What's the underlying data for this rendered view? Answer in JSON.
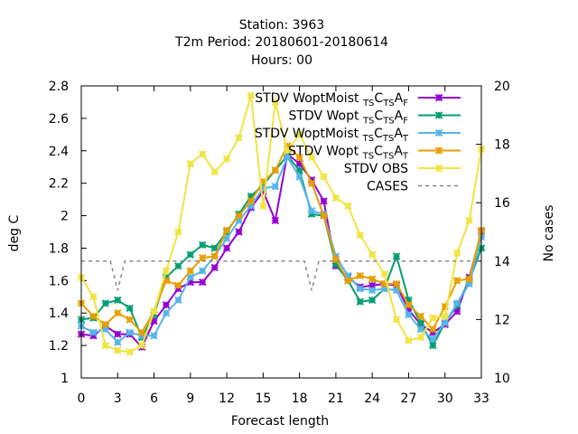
{
  "chart_data": {
    "type": "line",
    "title_lines": [
      "Station:     3963",
      "T2m   Period: 20180601-20180614",
      "Hours:  00"
    ],
    "xlabel": "Forecast length",
    "ylabel": "deg C",
    "y2label": "No cases",
    "xlim": [
      0,
      33
    ],
    "ylim": [
      1,
      2.8
    ],
    "y2lim": [
      10,
      20
    ],
    "xticks": [
      0,
      3,
      6,
      9,
      12,
      15,
      18,
      21,
      24,
      27,
      30,
      33
    ],
    "yticks": [
      1,
      1.2,
      1.4,
      1.6,
      1.8,
      2,
      2.2,
      2.4,
      2.6,
      2.8
    ],
    "y2ticks": [
      10,
      12,
      14,
      16,
      18,
      20
    ],
    "x": [
      0,
      1,
      2,
      3,
      4,
      5,
      6,
      7,
      8,
      9,
      10,
      11,
      12,
      13,
      14,
      15,
      16,
      17,
      18,
      19,
      20,
      21,
      22,
      23,
      24,
      25,
      26,
      27,
      28,
      29,
      30,
      31,
      32,
      33
    ],
    "legend_position": "top-right",
    "series": [
      {
        "name": "STDV WoptMoist_TS C_TS A_F",
        "color": "#9400d3",
        "marker": "x",
        "axis": "y",
        "values": [
          1.27,
          1.26,
          1.32,
          1.27,
          1.27,
          1.19,
          1.35,
          1.45,
          1.55,
          1.59,
          1.59,
          1.68,
          1.8,
          1.9,
          2.05,
          2.15,
          1.97,
          2.38,
          2.32,
          2.22,
          2.09,
          1.69,
          1.62,
          1.56,
          1.57,
          1.58,
          1.57,
          1.42,
          1.33,
          1.28,
          1.33,
          1.41,
          1.62,
          1.9
        ]
      },
      {
        "name": "STDV Wopt_TS C_TS A_F",
        "color": "#009e73",
        "marker": "x",
        "axis": "y",
        "values": [
          1.36,
          1.37,
          1.46,
          1.48,
          1.43,
          1.25,
          1.39,
          1.62,
          1.69,
          1.76,
          1.82,
          1.8,
          1.9,
          2.01,
          2.12,
          2.19,
          2.28,
          2.37,
          2.28,
          2.01,
          2.0,
          1.7,
          1.6,
          1.47,
          1.48,
          1.55,
          1.75,
          1.48,
          1.34,
          1.2,
          1.34,
          1.45,
          1.6,
          1.8
        ]
      },
      {
        "name": "STDV WoptMoist_TS C_TS A_T",
        "color": "#56b4e9",
        "marker": "x",
        "axis": "y",
        "values": [
          1.32,
          1.28,
          1.3,
          1.22,
          1.28,
          1.26,
          1.26,
          1.4,
          1.48,
          1.62,
          1.66,
          1.75,
          1.86,
          1.97,
          2.06,
          2.17,
          2.18,
          2.36,
          2.24,
          2.03,
          2.01,
          1.75,
          1.63,
          1.55,
          1.54,
          1.55,
          1.54,
          1.39,
          1.3,
          1.24,
          1.34,
          1.46,
          1.58,
          1.87
        ]
      },
      {
        "name": "STDV Wopt_TS C_TS A_T",
        "color": "#e69f00",
        "marker": "x",
        "axis": "y",
        "values": [
          1.46,
          1.38,
          1.33,
          1.4,
          1.36,
          1.28,
          1.41,
          1.6,
          1.57,
          1.66,
          1.74,
          1.75,
          1.91,
          2.0,
          2.09,
          2.21,
          2.28,
          2.43,
          2.36,
          2.2,
          2.0,
          1.73,
          1.6,
          1.63,
          1.61,
          1.58,
          1.58,
          1.45,
          1.38,
          1.3,
          1.44,
          1.6,
          1.61,
          1.91
        ]
      },
      {
        "name": "STDV OBS",
        "color": "#f0e442",
        "marker": "x",
        "axis": "y",
        "values": [
          1.62,
          1.5,
          1.2,
          1.17,
          1.16,
          1.2,
          1.41,
          1.66,
          1.9,
          2.32,
          2.38,
          2.27,
          2.35,
          2.48,
          2.74,
          2.06,
          2.7,
          2.4,
          2.5,
          2.36,
          2.24,
          2.11,
          2.06,
          1.88,
          1.76,
          1.64,
          1.36,
          1.23,
          1.25,
          1.37,
          1.38,
          1.77,
          1.97,
          2.41
        ]
      },
      {
        "name": "CASES",
        "color": "#888888",
        "marker": "none",
        "dashed": true,
        "axis": "y2",
        "values": [
          14,
          14,
          14,
          13,
          14,
          14,
          14,
          14,
          14,
          14,
          14,
          14,
          14,
          14,
          14,
          14,
          14,
          14,
          14,
          13,
          14,
          14,
          14,
          14,
          14,
          14,
          14,
          14,
          14,
          14,
          14,
          14,
          14,
          14
        ]
      }
    ]
  }
}
